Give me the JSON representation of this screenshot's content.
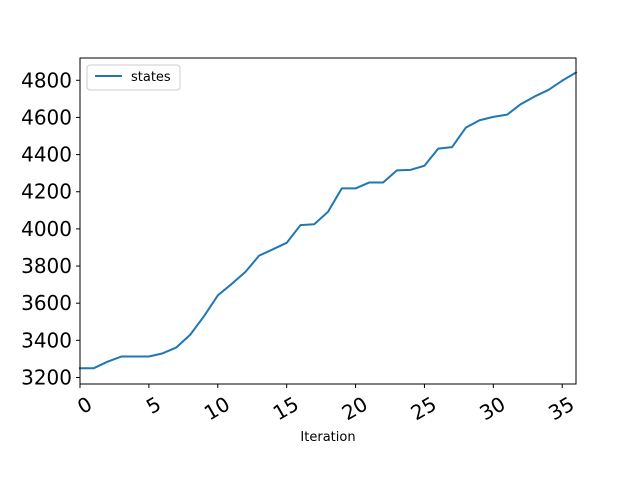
{
  "chart_data": {
    "type": "line",
    "title": "",
    "xlabel": "Iteration",
    "ylabel": "",
    "xlim": [
      0,
      36
    ],
    "ylim": [
      3165,
      4920
    ],
    "x_ticks": [
      0,
      5,
      10,
      15,
      20,
      25,
      30,
      35
    ],
    "y_ticks": [
      3200,
      3400,
      3600,
      3800,
      4000,
      4200,
      4400,
      4600,
      4800
    ],
    "grid": false,
    "legend_position": "top-left",
    "series": [
      {
        "name": "states",
        "color": "#1f77b4",
        "x": [
          0,
          1,
          2,
          3,
          4,
          5,
          6,
          7,
          8,
          9,
          10,
          11,
          12,
          13,
          14,
          15,
          16,
          17,
          18,
          19,
          20,
          21,
          22,
          23,
          24,
          25,
          26,
          27,
          28,
          29,
          30,
          31,
          32,
          33,
          34,
          35,
          36
        ],
        "values": [
          3250,
          3250,
          3285,
          3313,
          3313,
          3313,
          3330,
          3362,
          3430,
          3530,
          3642,
          3703,
          3768,
          3856,
          3890,
          3925,
          4020,
          4025,
          4092,
          4218,
          4218,
          4250,
          4250,
          4315,
          4318,
          4340,
          4432,
          4440,
          4545,
          4585,
          4603,
          4615,
          4672,
          4713,
          4748,
          4798,
          4842
        ]
      }
    ]
  }
}
